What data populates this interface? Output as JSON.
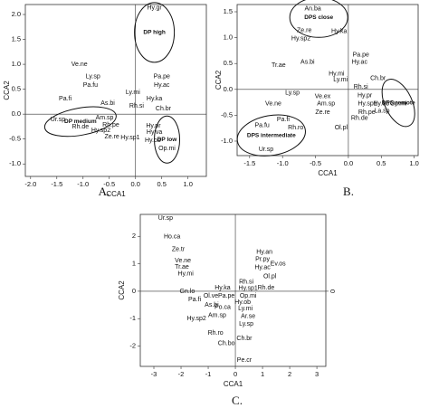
{
  "chart_data": [
    {
      "type": "scatter",
      "panel": "A.",
      "xlabel": "CCA1",
      "ylabel": "CCA2",
      "xlim": [
        -2.1,
        1.35
      ],
      "ylim": [
        -1.25,
        2.2
      ],
      "xticks": [
        {
          "value": -2,
          "label": "-2.0"
        },
        -1.5,
        {
          "value": -1,
          "label": "-1.0"
        },
        -0.5,
        {
          "value": 0,
          "label": "0.0"
        },
        0.5,
        {
          "value": 1,
          "label": "1.0"
        }
      ],
      "yticks": [
        {
          "value": -1,
          "label": "-1.0"
        },
        -0.5,
        {
          "value": 0,
          "label": "0.0"
        },
        0.5,
        {
          "value": 1,
          "label": "1.0"
        },
        1.5,
        {
          "value": 2,
          "label": "2.0"
        }
      ],
      "labels": [
        "Hy.gr",
        "Ve.ne",
        "Ly.sp",
        "Pa.fu",
        "Pa.pe",
        "Hy.ac",
        "Ly.mi",
        "As.bi",
        "Pa.fi",
        "Hy.ka",
        "Rh.si",
        "Ur.sp",
        "Rh.de",
        "Am.sp",
        "Rh.pe",
        "Hy.sp2",
        "Ze.re",
        "Hy.sp1",
        "Hy.pr",
        "Ch.br",
        "Hy.va",
        "Hy.ob",
        "Op.mi"
      ],
      "x": [
        0.36,
        -1.07,
        -0.81,
        -0.86,
        0.5,
        0.5,
        -0.05,
        -0.53,
        -1.34,
        0.36,
        0.02,
        -1.48,
        -1.05,
        -0.59,
        -0.47,
        -0.66,
        -0.45,
        -0.1,
        0.34,
        0.53,
        0.36,
        0.33,
        0.6
      ],
      "y": [
        2.13,
        1.0,
        0.75,
        0.58,
        0.75,
        0.58,
        0.44,
        0.22,
        0.31,
        0.31,
        0.16,
        -0.11,
        -0.25,
        -0.07,
        -0.22,
        -0.33,
        -0.45,
        -0.47,
        -0.24,
        0.11,
        -0.36,
        -0.53,
        -0.69
      ],
      "groups": [
        {
          "label": "DP high",
          "x": 0.36,
          "y": 1.64
        },
        {
          "label": "DP medium",
          "x": -1.05,
          "y": -0.15
        },
        {
          "label": "DP low",
          "x": 0.6,
          "y": -0.51
        }
      ]
    },
    {
      "type": "scatter",
      "panel": "B.",
      "xlabel": "CCA1",
      "ylabel": "CCA2",
      "xlim": [
        -1.69,
        1.06
      ],
      "ylim": [
        -1.28,
        1.64
      ],
      "xticks": [
        -1.5,
        {
          "value": -1,
          "label": "-1.0"
        },
        -0.5,
        {
          "value": 0,
          "label": "0.0"
        },
        0.5,
        {
          "value": 1,
          "label": "1.0"
        }
      ],
      "yticks": [
        {
          "value": -1,
          "label": "-1.0"
        },
        -0.5,
        {
          "value": 0,
          "label": "0.0"
        },
        0.5,
        {
          "value": 1,
          "label": "1.0"
        },
        1.5
      ],
      "labels": [
        "An.ba",
        "Ze.re",
        "Hy.ka",
        "Hy.sp2",
        "Pa.pe",
        "Hy.ac",
        "Tr.ae",
        "As.bi",
        "Hy.mi",
        "Ly.mi",
        "Ch.br",
        "Rh.si",
        "Ly.sp",
        "Ve.ex",
        "Ve.ne",
        "Am.sp",
        "Hy.pr",
        "Ze.re",
        "Hy.sp1",
        "Rh.pe",
        "Hy.ob",
        "La.sp",
        "Op.mi",
        "Rh.de",
        "Ol.pl",
        "Pa.fi",
        "Pa.fu",
        "Rh.ro",
        "Ur.sp"
      ],
      "x": [
        -0.54,
        -0.67,
        -0.14,
        -0.72,
        0.19,
        0.17,
        -1.06,
        -0.62,
        -0.18,
        -0.12,
        0.45,
        0.19,
        -0.85,
        -0.39,
        -1.14,
        -0.34,
        0.25,
        -0.39,
        0.29,
        0.28,
        0.5,
        0.51,
        0.76,
        0.17,
        -0.11,
        -0.99,
        -1.31,
        -0.8,
        -1.25
      ],
      "y": [
        1.56,
        1.14,
        1.12,
        0.98,
        0.67,
        0.53,
        0.47,
        0.53,
        0.3,
        0.19,
        0.21,
        0.05,
        -0.07,
        -0.14,
        -0.28,
        -0.28,
        -0.12,
        -0.44,
        -0.28,
        -0.44,
        -0.28,
        -0.42,
        -0.28,
        -0.56,
        -0.74,
        -0.58,
        -0.7,
        -0.74,
        -1.16
      ],
      "groups": [
        {
          "label": "DPS close",
          "x": -0.45,
          "y": 1.39
        },
        {
          "label": "DPS remote",
          "x": 0.76,
          "y": -0.26
        },
        {
          "label": "DPS intermediate",
          "x": -1.17,
          "y": -0.89
        }
      ]
    },
    {
      "type": "scatter",
      "panel": "C.",
      "xlabel": "CCA1",
      "ylabel": "CCA2",
      "xlim": [
        -3.5,
        3.33
      ],
      "ylim": [
        -2.74,
        2.8
      ],
      "y2lim": [
        -2.74,
        2.8
      ],
      "y2ticks": [
        0
      ],
      "xticks": [
        -3,
        -2,
        -1,
        0,
        1,
        2,
        3
      ],
      "yticks": [
        -2,
        -1,
        0,
        1,
        2
      ],
      "labels": [
        "Ur.sp",
        "Ho.ca",
        "Ze.tr",
        "Ve.ne",
        "Tr.ae",
        "Hy.mi",
        "Hy.an",
        "Pr.py",
        "Hy.ac",
        "Ev.os",
        "Ol.pl",
        "Rh.si",
        "Hy.ka",
        "Rh.de",
        "Hy.sp1",
        "Op.mi",
        "Gn.lo",
        "Ol.ve",
        "Pa.fi",
        "Pa.pe",
        "Hy.ob",
        "As.bi",
        "Po.ca",
        "Ly.mi",
        "Am.sp",
        "Hy.sp2",
        "Ar.se",
        "Ly.sp",
        "Ch.br",
        "Rh.ro",
        "Ch.bo",
        "Pe.cr"
      ],
      "x": [
        -2.57,
        -2.33,
        -2.1,
        -1.93,
        -1.97,
        -1.83,
        1.07,
        1.0,
        1.0,
        1.57,
        1.27,
        0.4,
        -0.47,
        1.13,
        0.47,
        0.47,
        -1.77,
        -0.9,
        -1.5,
        -0.33,
        0.27,
        -0.87,
        -0.47,
        0.37,
        -0.67,
        -1.43,
        0.47,
        0.4,
        0.33,
        -0.73,
        -0.33,
        0.33
      ],
      "y": [
        2.67,
        1.98,
        1.52,
        1.12,
        0.89,
        0.63,
        1.42,
        1.16,
        0.86,
        0.99,
        0.53,
        0.33,
        0.13,
        0.13,
        0.1,
        -0.17,
        0.0,
        -0.17,
        -0.3,
        -0.17,
        -0.4,
        -0.5,
        -0.59,
        -0.63,
        -0.89,
        -0.99,
        -0.92,
        -1.19,
        -1.72,
        -1.52,
        -1.91,
        -2.51
      ]
    }
  ]
}
